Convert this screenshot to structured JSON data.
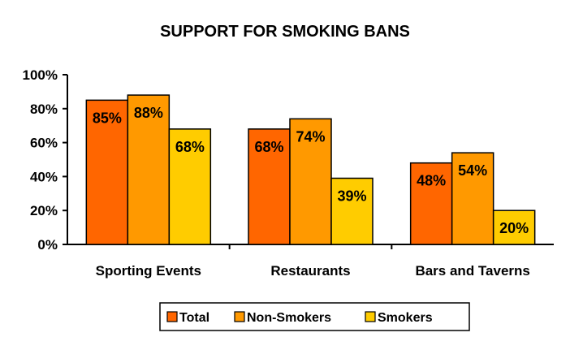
{
  "chart_data": {
    "type": "bar",
    "title": "SUPPORT FOR SMOKING BANS",
    "xlabel": "",
    "ylabel": "",
    "categories": [
      "Sporting Events",
      "Restaurants",
      "Bars and Taverns"
    ],
    "ylim": [
      0,
      100
    ],
    "yticks": [
      0,
      20,
      40,
      60,
      80,
      100
    ],
    "ytick_labels": [
      "0%",
      "20%",
      "40%",
      "60%",
      "80%",
      "100%"
    ],
    "series": [
      {
        "name": "Total",
        "color": "#FF6600",
        "values": [
          85,
          68,
          48
        ],
        "labels": [
          "85%",
          "68%",
          "48%"
        ]
      },
      {
        "name": "Non-Smokers",
        "color": "#FF9900",
        "values": [
          88,
          74,
          54
        ],
        "labels": [
          "88%",
          "74%",
          "54%"
        ]
      },
      {
        "name": "Smokers",
        "color": "#FFCC00",
        "values": [
          68,
          39,
          20
        ],
        "labels": [
          "68%",
          "39%",
          "20%"
        ]
      }
    ],
    "grid": false,
    "legend_position": "bottom-center"
  }
}
